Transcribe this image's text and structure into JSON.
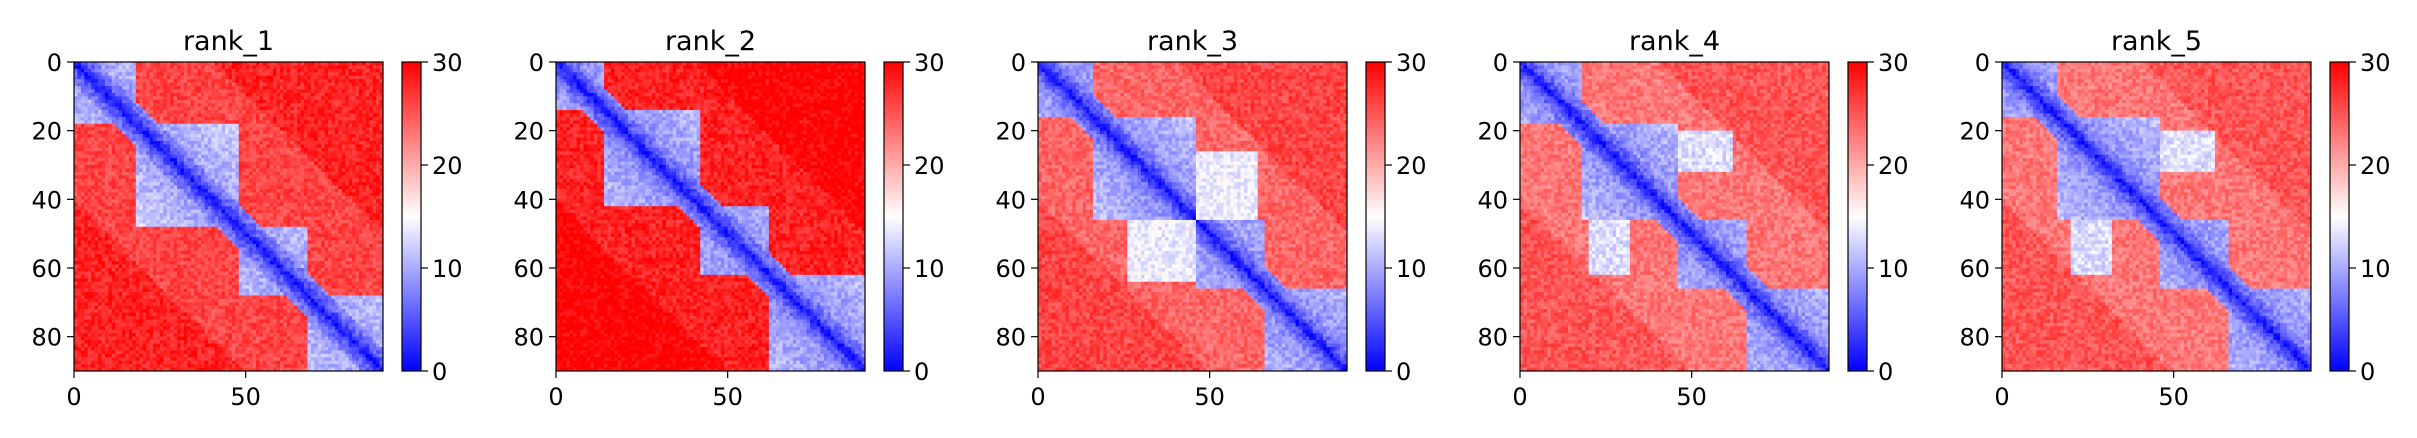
{
  "chart_data": [
    {
      "type": "heatmap",
      "title": "rank_1",
      "xlabel": "",
      "ylabel": "",
      "size": 90,
      "xlim": [
        0,
        90
      ],
      "ylim": [
        90,
        0
      ],
      "x_ticks": [
        0,
        50
      ],
      "y_ticks": [
        0,
        20,
        40,
        60,
        80
      ],
      "colorbar": {
        "range": [
          0,
          30
        ],
        "ticks": [
          0,
          10,
          20,
          30
        ],
        "colormap": "bwr"
      },
      "domains": [
        [
          0,
          18
        ],
        [
          18,
          48
        ],
        [
          48,
          68
        ],
        [
          68,
          90
        ]
      ],
      "domain_value": 9,
      "inter_domain_value": 26,
      "contacts": []
    },
    {
      "type": "heatmap",
      "title": "rank_2",
      "xlabel": "",
      "ylabel": "",
      "size": 90,
      "xlim": [
        0,
        90
      ],
      "ylim": [
        90,
        0
      ],
      "x_ticks": [
        0,
        50
      ],
      "y_ticks": [
        0,
        20,
        40,
        60,
        80
      ],
      "colorbar": {
        "range": [
          0,
          30
        ],
        "ticks": [
          0,
          10,
          20,
          30
        ],
        "colormap": "bwr"
      },
      "domains": [
        [
          0,
          14
        ],
        [
          14,
          42
        ],
        [
          42,
          62
        ],
        [
          62,
          90
        ]
      ],
      "domain_value": 8,
      "inter_domain_value": 28,
      "contacts": []
    },
    {
      "type": "heatmap",
      "title": "rank_3",
      "xlabel": "",
      "ylabel": "",
      "size": 90,
      "xlim": [
        0,
        90
      ],
      "ylim": [
        90,
        0
      ],
      "x_ticks": [
        0,
        50
      ],
      "y_ticks": [
        0,
        20,
        40,
        60,
        80
      ],
      "colorbar": {
        "range": [
          0,
          30
        ],
        "ticks": [
          0,
          10,
          20,
          30
        ],
        "colormap": "bwr"
      },
      "domains": [
        [
          0,
          16
        ],
        [
          16,
          46
        ],
        [
          46,
          66
        ],
        [
          66,
          90
        ]
      ],
      "domain_value": 8,
      "inter_domain_value": 24,
      "contacts": [
        {
          "rows": [
            26,
            46
          ],
          "cols": [
            46,
            64
          ],
          "value": 14
        }
      ]
    },
    {
      "type": "heatmap",
      "title": "rank_4",
      "xlabel": "",
      "ylabel": "",
      "size": 90,
      "xlim": [
        0,
        90
      ],
      "ylim": [
        90,
        0
      ],
      "x_ticks": [
        0,
        50
      ],
      "y_ticks": [
        0,
        20,
        40,
        60,
        80
      ],
      "colorbar": {
        "range": [
          0,
          30
        ],
        "ticks": [
          0,
          10,
          20,
          30
        ],
        "colormap": "bwr"
      },
      "domains": [
        [
          0,
          18
        ],
        [
          18,
          46
        ],
        [
          46,
          66
        ],
        [
          66,
          90
        ]
      ],
      "domain_value": 8,
      "inter_domain_value": 23,
      "contacts": [
        {
          "rows": [
            20,
            32
          ],
          "cols": [
            46,
            62
          ],
          "value": 13
        }
      ]
    },
    {
      "type": "heatmap",
      "title": "rank_5",
      "xlabel": "",
      "ylabel": "",
      "size": 90,
      "xlim": [
        0,
        90
      ],
      "ylim": [
        90,
        0
      ],
      "x_ticks": [
        0,
        50
      ],
      "y_ticks": [
        0,
        20,
        40,
        60,
        80
      ],
      "colorbar": {
        "range": [
          0,
          30
        ],
        "ticks": [
          0,
          10,
          20,
          30
        ],
        "colormap": "bwr"
      },
      "domains": [
        [
          0,
          16
        ],
        [
          16,
          46
        ],
        [
          46,
          66
        ],
        [
          66,
          90
        ]
      ],
      "domain_value": 8,
      "inter_domain_value": 23,
      "contacts": [
        {
          "rows": [
            20,
            32
          ],
          "cols": [
            46,
            62
          ],
          "value": 13
        }
      ]
    }
  ]
}
